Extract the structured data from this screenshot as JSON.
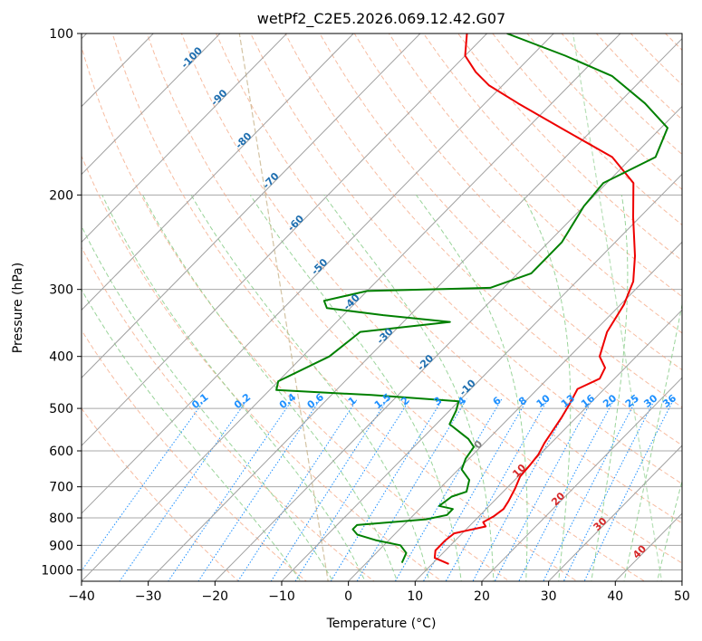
{
  "chart_data": {
    "type": "line",
    "title": "wetPf2_C2E5.2026.069.12.42.G07",
    "xlabel": "Temperature (°C)",
    "ylabel": "Pressure (hPa)",
    "xlim": [
      -40,
      50
    ],
    "ylim": [
      1050,
      100
    ],
    "y_scale": "log",
    "skew": "skew-T log-p",
    "grid": true,
    "x_ticks": [
      "−40",
      "−30",
      "−20",
      "−10",
      "0",
      "10",
      "20",
      "30",
      "40",
      "50"
    ],
    "y_ticks": [
      "100",
      "200",
      "300",
      "400",
      "500",
      "600",
      "700",
      "800",
      "900",
      "1000"
    ],
    "series": [
      {
        "role": "temperature",
        "color": "#ee0000",
        "points": [
          [
            12.5,
            975
          ],
          [
            9.5,
            950
          ],
          [
            8.5,
            920
          ],
          [
            8.5,
            880
          ],
          [
            8.8,
            855
          ],
          [
            12.5,
            830
          ],
          [
            11.5,
            815
          ],
          [
            12.2,
            795
          ],
          [
            12.6,
            770
          ],
          [
            12.2,
            745
          ],
          [
            11.3,
            705
          ],
          [
            10.3,
            670
          ],
          [
            10.1,
            640
          ],
          [
            9.8,
            610
          ],
          [
            9.0,
            580
          ],
          [
            7.8,
            520
          ],
          [
            7.0,
            490
          ],
          [
            6.0,
            460
          ],
          [
            7.8,
            440
          ],
          [
            7.0,
            420
          ],
          [
            4.5,
            400
          ],
          [
            2.0,
            360
          ],
          [
            0.5,
            320
          ],
          [
            -1.5,
            290
          ],
          [
            -5.0,
            260
          ],
          [
            -11.0,
            220
          ],
          [
            -16.0,
            190
          ],
          [
            -23.0,
            170
          ],
          [
            -35.0,
            150
          ],
          [
            -45.0,
            135
          ],
          [
            -52.0,
            125
          ],
          [
            -56.0,
            118
          ],
          [
            -60.0,
            110
          ],
          [
            -63.0,
            100
          ]
        ]
      },
      {
        "role": "dewpoint",
        "color": "#008000",
        "points": [
          [
            5.3,
            970
          ],
          [
            4.5,
            930
          ],
          [
            2.5,
            900
          ],
          [
            -2.0,
            880
          ],
          [
            -5.5,
            860
          ],
          [
            -7.0,
            840
          ],
          [
            -7.0,
            825
          ],
          [
            2.5,
            805
          ],
          [
            5.0,
            790
          ],
          [
            5.0,
            770
          ],
          [
            2.5,
            760
          ],
          [
            3.0,
            730
          ],
          [
            4.5,
            715
          ],
          [
            3.2,
            680
          ],
          [
            0.5,
            650
          ],
          [
            -0.5,
            620
          ],
          [
            -1.0,
            590
          ],
          [
            -3.0,
            570
          ],
          [
            -8.0,
            535
          ],
          [
            -9.0,
            505
          ],
          [
            -10.0,
            485
          ],
          [
            -24.0,
            472
          ],
          [
            -39.0,
            462
          ],
          [
            -40.0,
            445
          ],
          [
            -36.0,
            400
          ],
          [
            -35.0,
            360
          ],
          [
            -23.0,
            345
          ],
          [
            -34.0,
            335
          ],
          [
            -43.5,
            325
          ],
          [
            -45.0,
            315
          ],
          [
            -40.0,
            302
          ],
          [
            -22.0,
            298
          ],
          [
            -18.0,
            280
          ],
          [
            -18.0,
            265
          ],
          [
            -18.0,
            245
          ],
          [
            -20.0,
            210
          ],
          [
            -20.5,
            190
          ],
          [
            -16.5,
            170
          ],
          [
            -19.0,
            150
          ],
          [
            -26.0,
            135
          ],
          [
            -35.0,
            120
          ],
          [
            -45.0,
            110
          ],
          [
            -57.0,
            100
          ]
        ]
      }
    ],
    "dry_adiabats_theta_c": [
      -20,
      -10,
      0,
      10,
      20,
      30,
      40,
      50,
      60,
      70,
      80,
      90,
      100,
      110,
      120,
      130,
      140,
      150,
      160,
      170,
      180,
      190,
      200,
      210,
      220,
      230,
      240
    ],
    "moist_adiabats_c": [
      -10,
      -5,
      0,
      5,
      10,
      15,
      20,
      25,
      30,
      35,
      40,
      45
    ],
    "isotherms_c": [
      -100,
      -90,
      -80,
      -70,
      -60,
      -50,
      -40,
      -30,
      -20,
      -10,
      0,
      10,
      20,
      30,
      40,
      50
    ],
    "isotherm_labels": {
      "color": "#1f6fb0",
      "items": [
        {
          "text": "-100",
          "t": -100,
          "p": 112
        },
        {
          "text": "-90",
          "t": -90,
          "p": 133
        },
        {
          "text": "-80",
          "t": -80,
          "p": 160
        },
        {
          "text": "-70",
          "t": -70,
          "p": 190
        },
        {
          "text": "-60",
          "t": -60,
          "p": 228
        },
        {
          "text": "-50",
          "t": -50,
          "p": 275
        },
        {
          "text": "-40",
          "t": -40,
          "p": 320
        },
        {
          "text": "-30",
          "t": -30,
          "p": 370
        },
        {
          "text": "-20",
          "t": -20,
          "p": 415
        },
        {
          "text": "-10",
          "t": -10,
          "p": 462
        },
        {
          "text": "0",
          "t": 0,
          "p": 590
        },
        {
          "text": "10",
          "t": 10,
          "p": 660
        },
        {
          "text": "20",
          "t": 20,
          "p": 745
        },
        {
          "text": "30",
          "t": 30,
          "p": 830
        },
        {
          "text": "40",
          "t": 40,
          "p": 935
        }
      ]
    },
    "mixing_ratio_labels": {
      "color": "#1e90ff",
      "label_pressure": 490,
      "items": [
        {
          "text": "0.1",
          "w": 0.1
        },
        {
          "text": "0.2",
          "w": 0.2
        },
        {
          "text": "0.4",
          "w": 0.4
        },
        {
          "text": "0.6",
          "w": 0.6
        },
        {
          "text": "1",
          "w": 1
        },
        {
          "text": "1.5",
          "w": 1.5
        },
        {
          "text": "2",
          "w": 2
        },
        {
          "text": "3",
          "w": 3
        },
        {
          "text": "4",
          "w": 4
        },
        {
          "text": "6",
          "w": 6
        },
        {
          "text": "8",
          "w": 8
        },
        {
          "text": "10",
          "w": 10
        },
        {
          "text": "13",
          "w": 13
        },
        {
          "text": "16",
          "w": 16
        },
        {
          "text": "20",
          "w": 20
        },
        {
          "text": "25",
          "w": 25
        },
        {
          "text": "30",
          "w": 30
        },
        {
          "text": "36",
          "w": 36
        }
      ]
    },
    "colors": {
      "isotherm": "#a0a0a0",
      "isobar": "#a8a8a8",
      "dry_adiabat": "#f4a582",
      "moist_adiabat": "#8fcf8f",
      "mixing_ratio": "#1e90ff",
      "curved": "#c8b48c",
      "green_curve": "#a6d8a6"
    }
  }
}
